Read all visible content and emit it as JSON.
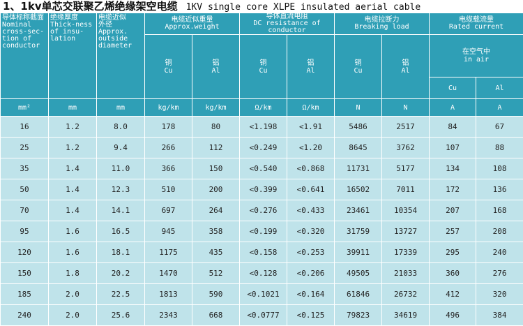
{
  "title": {
    "zh": "1、1kv单芯交联聚乙烯绝缘架空电缆",
    "en": "1KV single core XLPE insulated aerial cable"
  },
  "headers": {
    "section": {
      "zh": "导体标称截面",
      "en_lines": [
        "Nominal",
        "cross-sec-",
        "tion of",
        "conductor"
      ]
    },
    "thickness": {
      "zh": "绝缘厚度",
      "en_lines": [
        "Thick-ness",
        "of insu-",
        "lation"
      ]
    },
    "diameter": {
      "zh": "电缆近似",
      "zh2": "外径",
      "en_lines": [
        "Approx.",
        "outside",
        "diameter"
      ]
    },
    "weight": {
      "zh": "电缆近似重量",
      "en": "Approx.weight"
    },
    "resistance": {
      "zh": "导体直流电阻",
      "en": "DC resistance of conductor"
    },
    "breaking": {
      "zh": "电缆拉断力",
      "en": "Breaking  load"
    },
    "current": {
      "zh": "电缆载流量",
      "en": "Rated current"
    },
    "copper": {
      "zh": "铜",
      "en": "Cu"
    },
    "aluminum": {
      "zh": "铝",
      "en": "Al"
    },
    "in_air": {
      "zh": "在空气中",
      "en": "in air"
    },
    "cu_short": "Cu",
    "al_short": "Al"
  },
  "units": [
    "mm²",
    "mm",
    "mm",
    "kg/km",
    "kg/km",
    "Ω/km",
    "Ω/km",
    "N",
    "N",
    "A",
    "A"
  ],
  "rows": [
    [
      "16",
      "1.2",
      "8.0",
      "178",
      "80",
      "<1.198",
      "<1.91",
      "5486",
      "2517",
      "84",
      "67"
    ],
    [
      "25",
      "1.2",
      "9.4",
      "266",
      "112",
      "<0.249",
      "<1.20",
      "8645",
      "3762",
      "107",
      "88"
    ],
    [
      "35",
      "1.4",
      "11.0",
      "366",
      "150",
      "<0.540",
      "<0.868",
      "11731",
      "5177",
      "134",
      "108"
    ],
    [
      "50",
      "1.4",
      "12.3",
      "510",
      "200",
      "<0.399",
      "<0.641",
      "16502",
      "7011",
      "172",
      "136"
    ],
    [
      "70",
      "1.4",
      "14.1",
      "697",
      "264",
      "<0.276",
      "<0.433",
      "23461",
      "10354",
      "207",
      "168"
    ],
    [
      "95",
      "1.6",
      "16.5",
      "945",
      "358",
      "<0.199",
      "<0.320",
      "31759",
      "13727",
      "257",
      "208"
    ],
    [
      "120",
      "1.6",
      "18.1",
      "1175",
      "435",
      "<0.158",
      "<0.253",
      "39911",
      "17339",
      "295",
      "240"
    ],
    [
      "150",
      "1.8",
      "20.2",
      "1470",
      "512",
      "<0.128",
      "<0.206",
      "49505",
      "21033",
      "360",
      "276"
    ],
    [
      "185",
      "2.0",
      "22.5",
      "1813",
      "590",
      "<0.1021",
      "<0.164",
      "61846",
      "26732",
      "412",
      "320"
    ],
    [
      "240",
      "2.0",
      "25.6",
      "2343",
      "668",
      "<0.0777",
      "<0.125",
      "79823",
      "34619",
      "496",
      "384"
    ]
  ]
}
